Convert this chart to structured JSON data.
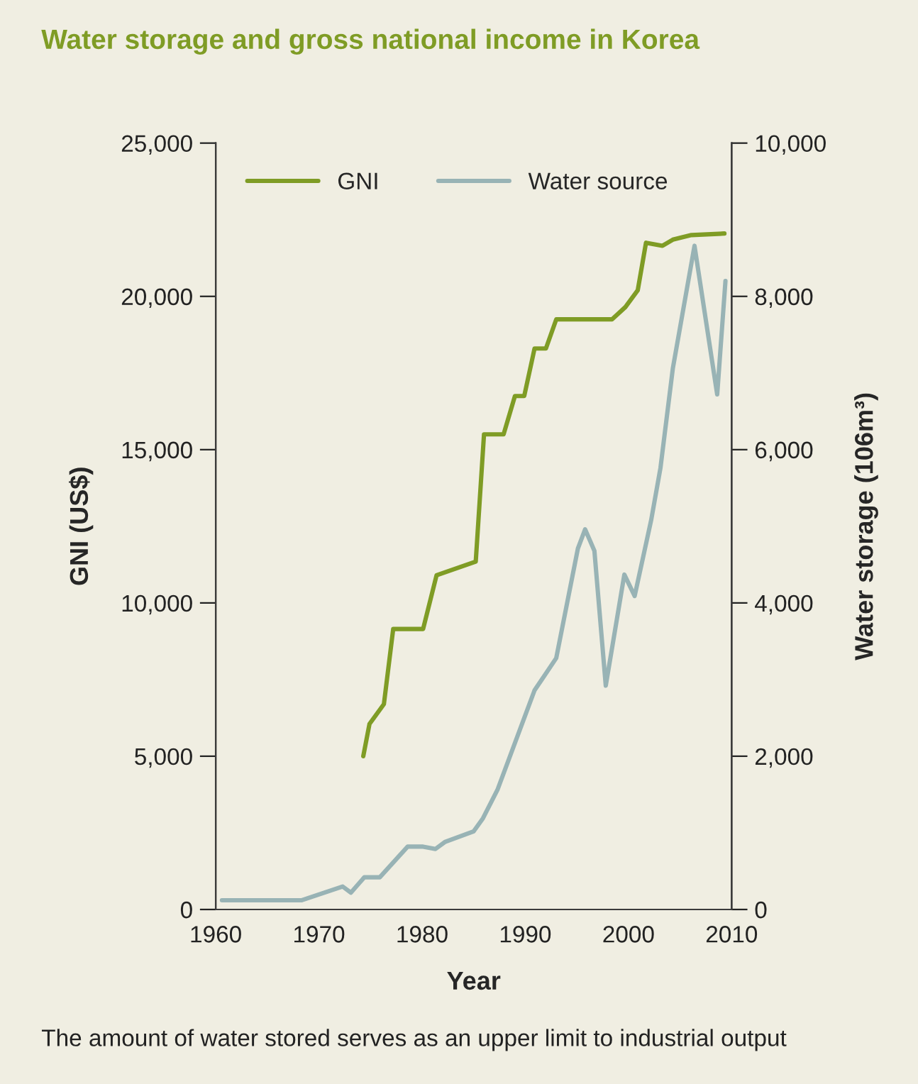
{
  "chart_data": {
    "type": "line",
    "title": "Water storage and gross national income in Korea",
    "xlabel": "Year",
    "ylabel": "GNI (US$)",
    "y2label": "Water storage (106m³)",
    "annotations": [
      "The amount of water stored serves as an upper limit to industrial output"
    ],
    "xlim": [
      1960,
      2010
    ],
    "xticks": [
      1960,
      1970,
      1980,
      1990,
      2000,
      2010
    ],
    "ylim": [
      0,
      25000
    ],
    "yticks": [
      {
        "value": 0,
        "label": "0"
      },
      {
        "value": 5000,
        "label": "5,000"
      },
      {
        "value": 10000,
        "label": "10,000"
      },
      {
        "value": 15000,
        "label": "15,000"
      },
      {
        "value": 20000,
        "label": "20,000"
      },
      {
        "value": 25000,
        "label": "25,000"
      }
    ],
    "y2lim": [
      0,
      10000
    ],
    "y2ticks": [
      {
        "value": 0,
        "label": "0"
      },
      {
        "value": 2000,
        "label": "2,000"
      },
      {
        "value": 4000,
        "label": "4,000"
      },
      {
        "value": 6000,
        "label": "6,000"
      },
      {
        "value": 8000,
        "label": "8,000"
      },
      {
        "value": 10000,
        "label": "10,000"
      }
    ],
    "grid": false,
    "legend": "top left",
    "line_style": "solid",
    "marker": "none",
    "series": [
      {
        "name": "GNI",
        "color": "#7f9c25",
        "x": [
          1974.3,
          1974.9,
          1976.3,
          1977.2,
          1980.1,
          1981.4,
          1985.2,
          1986.0,
          1987.9,
          1989.0,
          1989.9,
          1990.9,
          1992.0,
          1993.0,
          1998.4,
          1999.7,
          2000.9,
          2001.7,
          2003.3,
          2004.3,
          2006.1,
          2009.3
        ],
        "values": [
          5000,
          6050,
          6700,
          9150,
          9150,
          10900,
          11350,
          15500,
          15500,
          16750,
          16750,
          18300,
          18300,
          19250,
          19250,
          19650,
          20200,
          21750,
          21650,
          21850,
          22000,
          22050
        ]
      },
      {
        "name": "Water source",
        "color": "#98b3b5",
        "axis": "y2",
        "x": [
          1960.6,
          1968.3,
          1972.3,
          1973.1,
          1974.4,
          1975.9,
          1978.6,
          1980.1,
          1981.3,
          1982.2,
          1985.0,
          1985.9,
          1987.3,
          1990.9,
          1993.0,
          1995.1,
          1995.8,
          1996.7,
          1997.8,
          1999.6,
          2000.6,
          2002.2,
          2003.1,
          2004.3,
          2006.4,
          2008.6,
          2009.4
        ],
        "values": [
          120,
          120,
          300,
          220,
          420,
          420,
          820,
          820,
          790,
          880,
          1020,
          1190,
          1560,
          2860,
          3280,
          4710,
          4960,
          4680,
          2920,
          4370,
          4090,
          5080,
          5760,
          7060,
          8660,
          6720,
          8200
        ]
      }
    ]
  }
}
